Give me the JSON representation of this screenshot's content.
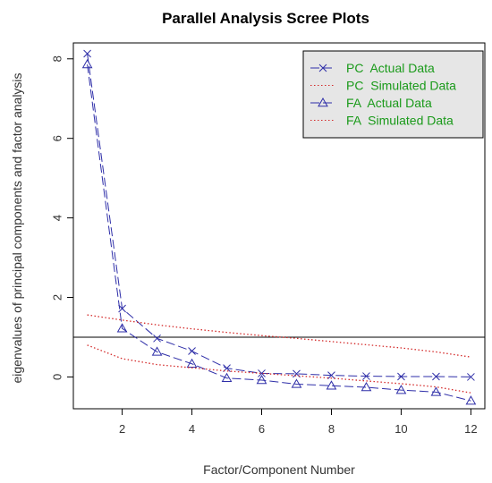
{
  "chart_data": {
    "type": "line",
    "title": "Parallel Analysis Scree Plots",
    "xlabel": "Factor/Component Number",
    "ylabel": "eigenvalues of principal components and factor analysis",
    "xlim": [
      0.6,
      12.4
    ],
    "ylim": [
      -0.8,
      8.4
    ],
    "x_ticks": [
      2,
      4,
      6,
      8,
      10,
      12
    ],
    "y_ticks": [
      0,
      2,
      4,
      6,
      8
    ],
    "reference_line": 1,
    "legend_position": "top-right",
    "colors": {
      "actual": "#2e2ea8",
      "simulated": "#d42a2a",
      "legend_text": "#1a9a1a",
      "legend_bg": "#e6e6e6"
    },
    "x": [
      1,
      2,
      3,
      4,
      5,
      6,
      7,
      8,
      9,
      10,
      11,
      12
    ],
    "series": [
      {
        "name": "PC  Actual Data",
        "marker": "x",
        "line_style": "longdash",
        "color": "#2e2ea8",
        "values": [
          8.13,
          1.72,
          0.97,
          0.65,
          0.22,
          0.09,
          0.08,
          0.04,
          0.02,
          0.01,
          0.01,
          0.0
        ]
      },
      {
        "name": "PC  Simulated Data",
        "marker": "none",
        "line_style": "dotted",
        "color": "#d42a2a",
        "values": [
          1.56,
          1.43,
          1.31,
          1.21,
          1.12,
          1.04,
          0.97,
          0.89,
          0.81,
          0.73,
          0.63,
          0.5
        ]
      },
      {
        "name": "FA  Actual Data",
        "marker": "triangle",
        "line_style": "longdash",
        "color": "#2e2ea8",
        "values": [
          7.86,
          1.22,
          0.63,
          0.33,
          -0.03,
          -0.08,
          -0.18,
          -0.22,
          -0.26,
          -0.33,
          -0.38,
          -0.6
        ]
      },
      {
        "name": "FA  Simulated Data",
        "marker": "none",
        "line_style": "dotted",
        "color": "#d42a2a",
        "values": [
          0.8,
          0.46,
          0.31,
          0.23,
          0.15,
          0.09,
          0.03,
          -0.03,
          -0.1,
          -0.17,
          -0.25,
          -0.4
        ]
      }
    ]
  }
}
